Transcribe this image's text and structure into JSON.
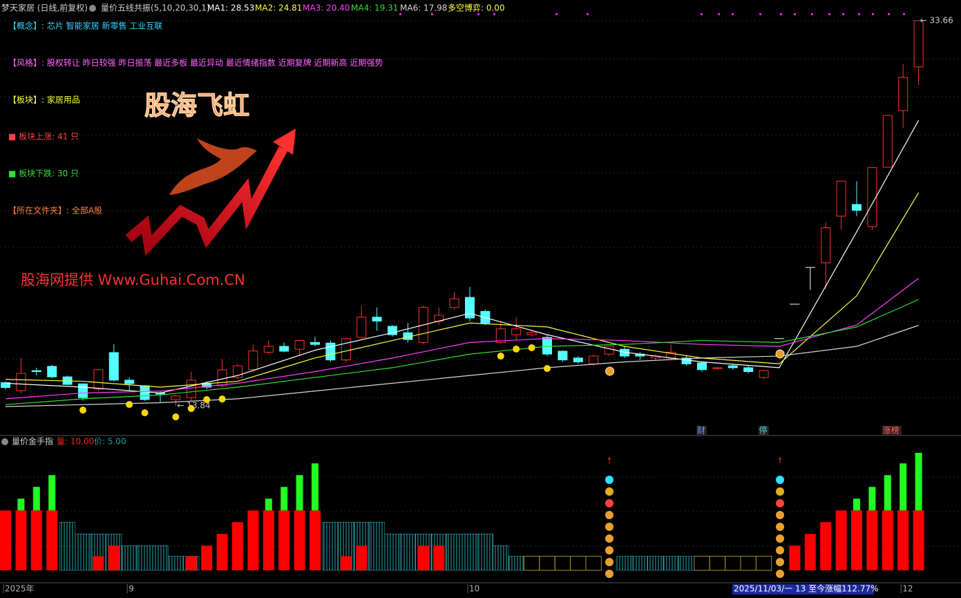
{
  "header": {
    "stock": "梦天家居 (日线,前复权)",
    "indicator": "量价五线共振(5,10,20,30,1)",
    "game": "多空博弈: 0.00"
  },
  "info": [
    {
      "text": "【概念】: 芯片 智能家居 新零售 工业互联",
      "color": "#30d8ff"
    },
    {
      "text": "【风格】: 股权转让 昨日较强 昨日振荡 最近多板 最近异动 最近情绪指数 近期复牌 近期新高 近期强势",
      "color": "#ff66ff"
    },
    {
      "text": "【板块】: 家居用品",
      "color": "#ffff40"
    },
    {
      "text": "■ 板块上涨: 41 只",
      "color": "#ff4040"
    },
    {
      "text": "■ 板块下跌: 30 只",
      "color": "#30e030"
    },
    {
      "text": "【所在文件夹】: 全部A股",
      "color": "#ff8040"
    }
  ],
  "logo": "股海飞虹",
  "watermark": "股海网提供 Www.Guhai.Com.CN",
  "status": "2025/11/03/一 13 至今涨幅112.77%",
  "chart_data": [
    {
      "type": "candlestick",
      "ylim": [
        12.31,
        34.19
      ],
      "up_color": "#ff3030",
      "down_color": "#54ffff",
      "open": [
        15.03,
        14.62,
        15.65,
        15.87,
        15.33,
        14.97,
        14.7,
        16.58,
        15.16,
        14.87,
        14.5,
        14.16,
        14.26,
        15.0,
        14.87,
        15.3,
        15.7,
        16.6,
        16.9,
        16.75,
        17.1,
        17.07,
        16.2,
        17.36,
        18.4,
        17.93,
        17.6,
        17.1,
        18.2,
        18.9,
        19.42,
        18.7,
        17.1,
        17.5,
        17.5,
        17.36,
        16.65,
        16.3,
        16.0,
        16.5,
        16.75,
        16.5,
        16.3,
        16.3,
        16.3,
        16.05,
        15.75,
        15.9,
        15.8,
        15.3,
        17.3,
        19.07,
        20.96,
        21.2,
        23.6,
        24.2,
        23.06,
        26.12,
        29.03,
        31.28
      ],
      "high": [
        15.1,
        16.29,
        15.8,
        15.95,
        15.4,
        15.0,
        15.75,
        17.0,
        15.3,
        14.9,
        14.6,
        14.4,
        15.6,
        15.1,
        16.25,
        16.0,
        17.0,
        17.2,
        17.1,
        17.2,
        17.4,
        17.2,
        17.35,
        19.0,
        18.9,
        18.0,
        18.1,
        19.0,
        18.9,
        19.7,
        19.96,
        18.8,
        18.2,
        18.4,
        17.7,
        17.5,
        16.7,
        16.4,
        16.5,
        16.9,
        16.9,
        16.6,
        16.5,
        17.0,
        16.4,
        16.1,
        15.85,
        16.0,
        15.9,
        15.7,
        17.3,
        19.07,
        20.96,
        23.3,
        25.4,
        25.4,
        26.1,
        28.78,
        31.42,
        33.66
      ],
      "low": [
        14.7,
        14.5,
        15.4,
        15.25,
        14.9,
        14.1,
        14.6,
        15.1,
        14.6,
        14.1,
        14.0,
        13.84,
        14.1,
        14.7,
        14.8,
        15.2,
        15.6,
        16.5,
        16.6,
        16.4,
        16.9,
        16.1,
        16.1,
        17.3,
        17.7,
        17.4,
        17.1,
        17.0,
        18.0,
        18.8,
        18.2,
        18.0,
        17.0,
        17.2,
        17.4,
        16.4,
        16.1,
        16.0,
        15.9,
        16.4,
        16.3,
        16.2,
        16.2,
        16.2,
        15.9,
        15.6,
        15.7,
        15.7,
        15.5,
        15.2,
        17.3,
        19.07,
        19.8,
        19.85,
        22.9,
        23.6,
        22.9,
        26.12,
        28.14,
        30.35
      ],
      "close": [
        14.78,
        15.51,
        15.6,
        15.33,
        14.94,
        14.26,
        15.7,
        15.16,
        14.98,
        14.16,
        14.45,
        14.35,
        15.16,
        14.8,
        15.69,
        15.9,
        16.66,
        16.9,
        16.65,
        17.2,
        17.0,
        16.2,
        17.3,
        18.4,
        18.2,
        17.5,
        17.25,
        18.9,
        18.5,
        19.35,
        18.36,
        18.1,
        17.8,
        17.8,
        17.6,
        16.5,
        16.2,
        16.1,
        16.4,
        16.9,
        16.4,
        16.4,
        16.4,
        16.6,
        16.0,
        15.7,
        15.8,
        15.8,
        15.6,
        15.65,
        17.3,
        19.07,
        20.96,
        23.0,
        25.4,
        23.9,
        26.1,
        28.78,
        30.74,
        33.66
      ],
      "series": [
        {
          "name": "MA1: 28.53",
          "color": "#ffffff",
          "x": [
            0,
            5,
            10,
            15,
            20,
            25,
            30,
            35,
            40,
            45,
            50,
            55,
            59
          ],
          "values": [
            15.0,
            14.8,
            14.5,
            15.4,
            16.7,
            17.6,
            18.6,
            17.5,
            16.6,
            16.1,
            15.8,
            22.8,
            28.53
          ]
        },
        {
          "name": "MA2: 24.81",
          "color": "#ffff40",
          "x": [
            0,
            5,
            10,
            15,
            20,
            25,
            30,
            35,
            40,
            45,
            50,
            55,
            59
          ],
          "values": [
            15.2,
            15.1,
            14.8,
            15.1,
            16.3,
            17.2,
            18.1,
            17.9,
            16.9,
            16.3,
            16.0,
            19.5,
            24.81
          ]
        },
        {
          "name": "MA3: 20.40",
          "color": "#ff40ff",
          "x": [
            0,
            5,
            10,
            15,
            20,
            25,
            30,
            35,
            40,
            45,
            50,
            55,
            59
          ],
          "values": [
            14.2,
            14.5,
            14.6,
            15.0,
            15.6,
            16.3,
            17.1,
            17.3,
            17.2,
            17.0,
            16.9,
            18.0,
            20.4
          ]
        },
        {
          "name": "MA4: 19.31",
          "color": "#30e030",
          "x": [
            0,
            5,
            10,
            15,
            20,
            25,
            30,
            35,
            40,
            45,
            50,
            55,
            59
          ],
          "values": [
            13.9,
            14.2,
            14.4,
            14.8,
            15.3,
            15.8,
            16.5,
            16.9,
            17.0,
            17.2,
            17.1,
            17.9,
            19.31
          ]
        },
        {
          "name": "MA6: 17.98",
          "color": "#d8d8d8",
          "x": [
            0,
            5,
            10,
            15,
            20,
            25,
            30,
            35,
            40,
            45,
            50,
            55,
            59
          ],
          "values": [
            13.8,
            13.9,
            14.0,
            14.2,
            14.6,
            15.0,
            15.4,
            15.8,
            16.1,
            16.3,
            16.4,
            16.9,
            17.98
          ]
        }
      ],
      "dots": {
        "color": "#ffd700",
        "x": [
          5,
          8,
          9,
          11,
          12,
          13,
          14,
          32,
          33,
          34,
          35
        ],
        "values": [
          13.62,
          13.91,
          13.48,
          13.27,
          13.7,
          14.16,
          14.19,
          16.4,
          16.76,
          16.83,
          15.76
        ]
      },
      "money_bags": {
        "x": [
          39,
          50
        ],
        "values": [
          15.62,
          16.51
        ]
      },
      "annotations": [
        {
          "text": "← 13.84",
          "x": 11,
          "y": 13.84
        },
        {
          "text": "← 33.66",
          "x": 59,
          "y": 33.66
        }
      ],
      "event_labels": [
        {
          "text": "财",
          "x": 45,
          "color": "#60a0ff"
        },
        {
          "text": "停",
          "x": 49,
          "color": "#30e0e0"
        },
        {
          "text": "涨榜",
          "x": 57,
          "color": "#ff6060"
        }
      ]
    },
    {
      "type": "bar",
      "title": "量价金手指",
      "labels": [
        {
          "text": "量: 10.00",
          "color": "#ff2020"
        },
        {
          "text": "价: 5.00",
          "color": "#20a0a0"
        }
      ],
      "ylim": [
        0,
        10
      ],
      "categories": [
        "2025年",
        null,
        null,
        null,
        null,
        null,
        null,
        null,
        "9",
        null,
        null,
        null,
        null,
        null,
        null,
        null,
        null,
        null,
        null,
        null,
        null,
        null,
        null,
        null,
        null,
        null,
        null,
        null,
        null,
        null,
        "10",
        null,
        null,
        null,
        null,
        null,
        null,
        null,
        null,
        null,
        null,
        null,
        null,
        null,
        null,
        null,
        null,
        null,
        null,
        null,
        null,
        null,
        null,
        null,
        null,
        null,
        null,
        null,
        "12",
        null
      ],
      "series": [
        {
          "name": "red",
          "color": "#ff0000",
          "values": [
            5.1,
            5.1,
            5.1,
            5.1,
            null,
            null,
            1.2,
            2.1,
            null,
            null,
            null,
            null,
            1.2,
            2.1,
            3.1,
            4.1,
            5.1,
            5.1,
            5.1,
            5.1,
            5.1,
            null,
            1.2,
            2.1,
            null,
            null,
            null,
            2.1,
            2.1,
            null,
            null,
            null,
            null,
            null,
            null,
            null,
            null,
            null,
            null,
            null,
            null,
            null,
            null,
            null,
            null,
            null,
            null,
            null,
            null,
            null,
            null,
            2.1,
            3.1,
            4.1,
            5.1,
            5.1,
            5.1,
            5.1,
            5.1,
            5.1
          ]
        },
        {
          "name": "green",
          "color": "#20ff20",
          "values": [
            null,
            1.0,
            2.0,
            3.0,
            null,
            null,
            null,
            null,
            null,
            null,
            null,
            null,
            null,
            null,
            null,
            null,
            null,
            1.0,
            2.0,
            3.0,
            4.0,
            null,
            null,
            null,
            null,
            null,
            null,
            null,
            null,
            null,
            null,
            null,
            null,
            null,
            null,
            null,
            null,
            null,
            null,
            null,
            null,
            null,
            null,
            null,
            null,
            null,
            null,
            null,
            null,
            null,
            null,
            null,
            null,
            null,
            null,
            1.0,
            2.0,
            3.0,
            4.0,
            4.9
          ]
        },
        {
          "name": "cyan",
          "color": "#2aa8b0",
          "values": [
            null,
            null,
            null,
            null,
            4.1,
            3.1,
            3.1,
            3.1,
            2.1,
            2.1,
            2.1,
            1.2,
            1.2,
            null,
            null,
            null,
            null,
            null,
            null,
            null,
            null,
            4.1,
            4.1,
            4.1,
            4.1,
            3.1,
            3.1,
            3.1,
            3.1,
            3.1,
            3.1,
            3.1,
            2.1,
            1.2,
            null,
            null,
            null,
            null,
            null,
            null,
            1.2,
            1.2,
            1.2,
            1.2,
            1.2,
            null,
            null,
            null,
            null,
            null,
            null,
            null,
            null,
            null,
            null,
            null,
            null,
            null,
            null,
            null
          ]
        },
        {
          "name": "yellow",
          "color": "#a09020",
          "values": [
            null,
            null,
            null,
            null,
            null,
            null,
            null,
            null,
            null,
            null,
            null,
            null,
            null,
            null,
            null,
            null,
            null,
            null,
            null,
            null,
            null,
            null,
            null,
            null,
            null,
            null,
            null,
            null,
            null,
            null,
            null,
            null,
            null,
            null,
            1.2,
            1.2,
            1.2,
            1.2,
            1.2,
            null,
            null,
            null,
            null,
            null,
            null,
            1.2,
            1.2,
            1.2,
            1.2,
            1.2,
            null,
            null,
            null,
            null,
            null,
            null,
            null,
            null,
            null,
            null
          ]
        }
      ]
    }
  ]
}
